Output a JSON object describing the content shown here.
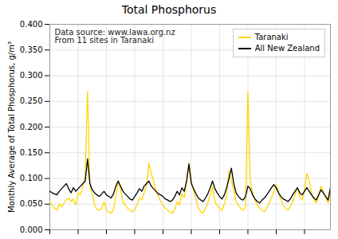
{
  "chart_data": {
    "type": "line",
    "title": "Total Phosphorus",
    "ylabel": "Monthly Average of Total Phosphorus, g/m³",
    "x": [
      0,
      1,
      2,
      3,
      4,
      5,
      6,
      7,
      8,
      9,
      10,
      11,
      12,
      13,
      14,
      15,
      16,
      17,
      18,
      19,
      20,
      21,
      22,
      23,
      24,
      25,
      26,
      27,
      28,
      29,
      30,
      31,
      32,
      33,
      34,
      35,
      36,
      37,
      38,
      39,
      40,
      41,
      42,
      43,
      44,
      45,
      46,
      47,
      48,
      49,
      50,
      51,
      52,
      53,
      54,
      55,
      56,
      57,
      58,
      59,
      60,
      61,
      62,
      63,
      64,
      65,
      66,
      67,
      68,
      69,
      70,
      71,
      72,
      73,
      74,
      75,
      76,
      77,
      78,
      79,
      80,
      81,
      82,
      83,
      84,
      85,
      86,
      87,
      88,
      89,
      90,
      91,
      92,
      93,
      94,
      95,
      96,
      97,
      98,
      99,
      100,
      101,
      102,
      103,
      104,
      105,
      106,
      107,
      108,
      109,
      110,
      111,
      112,
      113,
      114,
      115,
      116,
      117,
      118,
      119
    ],
    "series": [
      {
        "name": "Taranaki",
        "color": "#FFD700",
        "values": [
          0.055,
          0.048,
          0.042,
          0.038,
          0.05,
          0.045,
          0.052,
          0.058,
          0.062,
          0.055,
          0.06,
          0.048,
          0.072,
          0.068,
          0.085,
          0.105,
          0.27,
          0.085,
          0.07,
          0.048,
          0.04,
          0.038,
          0.042,
          0.055,
          0.038,
          0.035,
          0.032,
          0.04,
          0.068,
          0.095,
          0.078,
          0.055,
          0.048,
          0.042,
          0.038,
          0.035,
          0.04,
          0.048,
          0.062,
          0.058,
          0.072,
          0.085,
          0.13,
          0.11,
          0.095,
          0.078,
          0.065,
          0.055,
          0.048,
          0.042,
          0.038,
          0.035,
          0.032,
          0.04,
          0.055,
          0.048,
          0.07,
          0.062,
          0.095,
          0.13,
          0.095,
          0.075,
          0.06,
          0.042,
          0.035,
          0.032,
          0.042,
          0.052,
          0.068,
          0.085,
          0.055,
          0.048,
          0.042,
          0.038,
          0.05,
          0.068,
          0.115,
          0.095,
          0.078,
          0.055,
          0.048,
          0.042,
          0.038,
          0.045,
          0.27,
          0.095,
          0.072,
          0.058,
          0.048,
          0.042,
          0.038,
          0.035,
          0.042,
          0.052,
          0.062,
          0.075,
          0.088,
          0.072,
          0.058,
          0.048,
          0.042,
          0.038,
          0.045,
          0.055,
          0.068,
          0.082,
          0.065,
          0.058,
          0.075,
          0.11,
          0.095,
          0.072,
          0.058,
          0.052,
          0.065,
          0.085,
          0.075,
          0.062,
          0.052,
          0.075
        ]
      },
      {
        "name": "All New Zealand",
        "color": "#000000",
        "values": [
          0.075,
          0.072,
          0.07,
          0.068,
          0.075,
          0.08,
          0.085,
          0.09,
          0.08,
          0.072,
          0.082,
          0.075,
          0.08,
          0.085,
          0.09,
          0.095,
          0.138,
          0.09,
          0.078,
          0.072,
          0.068,
          0.065,
          0.07,
          0.075,
          0.068,
          0.065,
          0.062,
          0.07,
          0.085,
          0.095,
          0.085,
          0.075,
          0.07,
          0.065,
          0.06,
          0.058,
          0.065,
          0.072,
          0.08,
          0.075,
          0.085,
          0.09,
          0.095,
          0.085,
          0.08,
          0.075,
          0.07,
          0.068,
          0.065,
          0.06,
          0.058,
          0.055,
          0.058,
          0.065,
          0.075,
          0.068,
          0.082,
          0.075,
          0.095,
          0.128,
          0.09,
          0.08,
          0.07,
          0.062,
          0.058,
          0.055,
          0.062,
          0.07,
          0.082,
          0.095,
          0.08,
          0.072,
          0.065,
          0.06,
          0.068,
          0.082,
          0.1,
          0.12,
          0.09,
          0.072,
          0.065,
          0.06,
          0.058,
          0.065,
          0.085,
          0.08,
          0.068,
          0.06,
          0.055,
          0.052,
          0.058,
          0.062,
          0.068,
          0.075,
          0.082,
          0.088,
          0.082,
          0.072,
          0.065,
          0.06,
          0.058,
          0.055,
          0.06,
          0.068,
          0.075,
          0.082,
          0.072,
          0.068,
          0.075,
          0.082,
          0.075,
          0.068,
          0.062,
          0.058,
          0.068,
          0.078,
          0.072,
          0.065,
          0.058,
          0.082
        ]
      }
    ],
    "xlim": [
      0,
      119
    ],
    "xticks": [
      0,
      12,
      24,
      36,
      48,
      60,
      72,
      84,
      96,
      108
    ],
    "ylim": [
      0,
      0.4
    ],
    "yticks": [
      {
        "value": 0,
        "label": "0.000"
      },
      {
        "value": 0.05,
        "label": "0.050"
      },
      {
        "value": 0.1,
        "label": "0.100"
      },
      {
        "value": 0.15,
        "label": "0.150"
      },
      {
        "value": 0.2,
        "label": "0.200"
      },
      {
        "value": 0.25,
        "label": "0.250"
      },
      {
        "value": 0.3,
        "label": "0.300"
      },
      {
        "value": 0.35,
        "label": "0.350"
      },
      {
        "value": 0.4,
        "label": "0.400"
      }
    ],
    "grid": true,
    "legend": "upper right",
    "tick_labels": "y",
    "annotation": "Data source: www.lawa.org.nz\nFrom 11 sites in Taranaki"
  }
}
